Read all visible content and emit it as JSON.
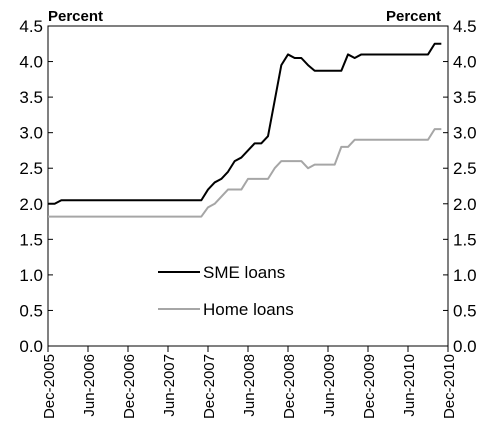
{
  "chart_data": {
    "type": "line",
    "y_unit_left": "Percent",
    "y_unit_right": "Percent",
    "ylim": [
      0,
      4.5
    ],
    "y_ticks": [
      "0.0",
      "0.5",
      "1.0",
      "1.5",
      "2.0",
      "2.5",
      "3.0",
      "3.5",
      "4.0",
      "4.5"
    ],
    "x_ticks": [
      "Dec-2005",
      "Jun-2006",
      "Dec-2006",
      "Jun-2007",
      "Dec-2007",
      "Jun-2008",
      "Dec-2008",
      "Jun-2009",
      "Dec-2009",
      "Jun-2010",
      "Dec-2010"
    ],
    "grid": false,
    "legend_placement": "center-left",
    "x_months_since_dec_2005": [
      0,
      1,
      2,
      23,
      24,
      25,
      26,
      27,
      28,
      29,
      30,
      31,
      32,
      33,
      34,
      35,
      36,
      37,
      38,
      39,
      40,
      41,
      42,
      43,
      44,
      45,
      46,
      47,
      48,
      57,
      58,
      59
    ],
    "series": [
      {
        "name": "SME loans",
        "color": "#000000",
        "x": [
          0,
          1,
          2,
          23,
          24,
          25,
          26,
          27,
          28,
          29,
          30,
          31,
          32,
          33,
          34,
          35,
          36,
          37,
          38,
          39,
          40,
          41,
          42,
          43,
          44,
          45,
          46,
          47,
          48,
          57,
          58,
          59
        ],
        "values": [
          2.0,
          2.0,
          2.05,
          2.05,
          2.2,
          2.3,
          2.35,
          2.45,
          2.6,
          2.65,
          2.75,
          2.85,
          2.85,
          2.95,
          3.45,
          3.95,
          4.1,
          4.05,
          4.05,
          3.95,
          3.87,
          3.87,
          3.87,
          3.87,
          3.87,
          4.1,
          4.05,
          4.1,
          4.1,
          4.1,
          4.25,
          4.25
        ]
      },
      {
        "name": "Home loans",
        "color": "#a6a6a6",
        "x": [
          0,
          23,
          24,
          25,
          26,
          27,
          28,
          29,
          30,
          31,
          32,
          33,
          34,
          35,
          36,
          37,
          38,
          39,
          40,
          41,
          42,
          43,
          44,
          45,
          46,
          47,
          48,
          57,
          58,
          59
        ],
        "values": [
          1.82,
          1.82,
          1.95,
          2.0,
          2.1,
          2.2,
          2.2,
          2.2,
          2.35,
          2.35,
          2.35,
          2.35,
          2.5,
          2.6,
          2.6,
          2.6,
          2.6,
          2.5,
          2.55,
          2.55,
          2.55,
          2.55,
          2.8,
          2.8,
          2.9,
          2.9,
          2.9,
          2.9,
          3.05,
          3.05
        ]
      }
    ]
  }
}
